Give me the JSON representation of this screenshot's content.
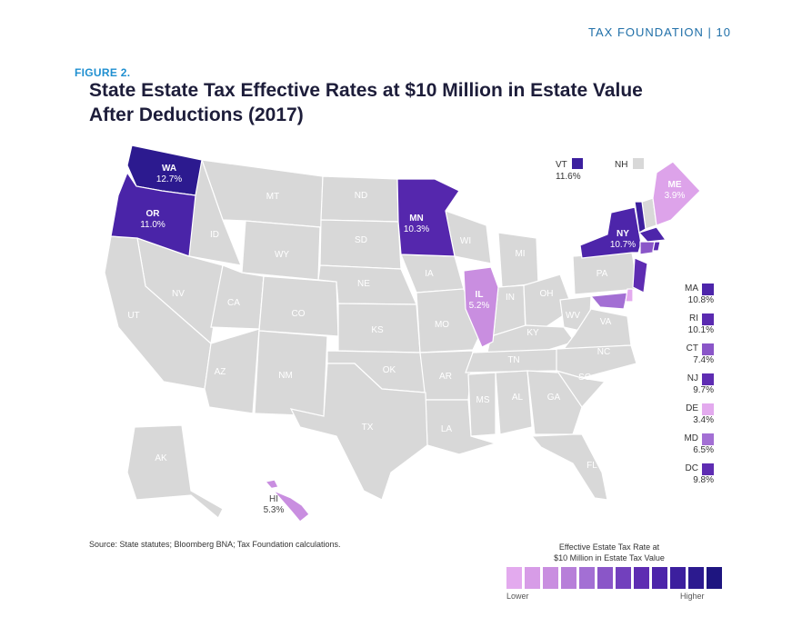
{
  "header": {
    "brand": "TAX FOUNDATION | 10"
  },
  "figure": {
    "label": "FIGURE 2.",
    "title": "State Estate Tax Effective Rates at $10 Million in Estate Value After Deductions (2017)"
  },
  "states": [
    {
      "abbr": "WA",
      "rate": "12.7%",
      "color": "#2c1a8f"
    },
    {
      "abbr": "OR",
      "rate": "11.0%",
      "color": "#4a24a8"
    },
    {
      "abbr": "MN",
      "rate": "10.3%",
      "color": "#5527ad"
    },
    {
      "abbr": "NY",
      "rate": "10.7%",
      "color": "#4d25aa"
    },
    {
      "abbr": "IL",
      "rate": "5.2%",
      "color": "#c98ee0"
    },
    {
      "abbr": "ME",
      "rate": "3.9%",
      "color": "#dda3ea"
    },
    {
      "abbr": "HI",
      "rate": "5.3%",
      "color": "#c98ee0"
    },
    {
      "abbr": "VT",
      "rate": "11.6%",
      "color": "#3c1f9e"
    }
  ],
  "unlabeled_states": [
    "MT",
    "ND",
    "ID",
    "WY",
    "SD",
    "NV",
    "UT",
    "CA",
    "CO",
    "NE",
    "IA",
    "WI",
    "MI",
    "IN",
    "OH",
    "PA",
    "KS",
    "MO",
    "KY",
    "WV",
    "VA",
    "AZ",
    "NM",
    "OK",
    "AR",
    "TN",
    "NC",
    "SC",
    "TX",
    "MS",
    "AL",
    "GA",
    "LA",
    "FL",
    "AK"
  ],
  "top_keys": {
    "vt": {
      "abbr": "VT",
      "rate": "11.6%",
      "color": "#3c1f9e"
    },
    "nh": {
      "abbr": "NH",
      "color": "#d8d8d8"
    }
  },
  "northeast_legend": [
    {
      "abbr": "MA",
      "rate": "10.8%",
      "color": "#4d25aa"
    },
    {
      "abbr": "RI",
      "rate": "10.1%",
      "color": "#5a2ab0"
    },
    {
      "abbr": "CT",
      "rate": "7.4%",
      "color": "#8a56c8"
    },
    {
      "abbr": "NJ",
      "rate": "9.7%",
      "color": "#5e2cb2"
    },
    {
      "abbr": "DE",
      "rate": "3.4%",
      "color": "#e3aaee"
    },
    {
      "abbr": "MD",
      "rate": "6.5%",
      "color": "#a36fd4"
    },
    {
      "abbr": "DC",
      "rate": "9.8%",
      "color": "#5e2cb2"
    }
  ],
  "source": "Source: State statutes; Bloomberg BNA; Tax Foundation calculations.",
  "legend": {
    "title_line1": "Effective Estate Tax Rate at",
    "title_line2": "$10 Million in Estate Tax Value",
    "low_label": "Lower",
    "high_label": "Higher",
    "scale_colors": [
      "#e3aaee",
      "#d79ce7",
      "#c98ee0",
      "#b77fd9",
      "#a36fd4",
      "#8a56c8",
      "#7240bd",
      "#5e2cb2",
      "#4d25aa",
      "#3c1f9e",
      "#2c1a8f",
      "#1e1580"
    ]
  }
}
